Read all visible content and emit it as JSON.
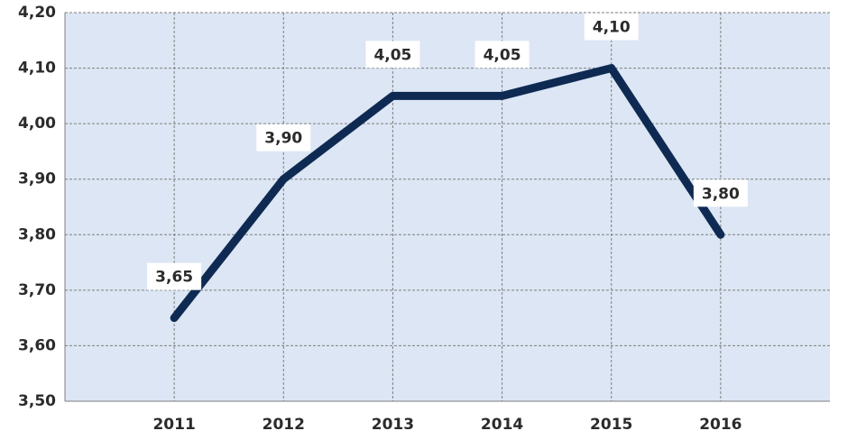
{
  "chart_data": {
    "type": "line",
    "categories": [
      "2011",
      "2012",
      "2013",
      "2014",
      "2015",
      "2016"
    ],
    "values": [
      3.65,
      3.9,
      4.05,
      4.05,
      4.1,
      3.8
    ],
    "value_labels": [
      "3,65",
      "3,90",
      "4,05",
      "4,05",
      "4,10",
      "3,80"
    ],
    "color": "#0f2a52",
    "plot_background": "#dce6f4",
    "ylim": [
      3.5,
      4.2
    ],
    "yticks": [
      {
        "value": 3.5,
        "label": "3,50"
      },
      {
        "value": 3.6,
        "label": "3,60"
      },
      {
        "value": 3.7,
        "label": "3,70"
      },
      {
        "value": 3.8,
        "label": "3,80"
      },
      {
        "value": 3.9,
        "label": "3,90"
      },
      {
        "value": 4.0,
        "label": "4,00"
      },
      {
        "value": 4.1,
        "label": "4,10"
      },
      {
        "value": 4.2,
        "label": "4,20"
      }
    ],
    "grid": true
  }
}
